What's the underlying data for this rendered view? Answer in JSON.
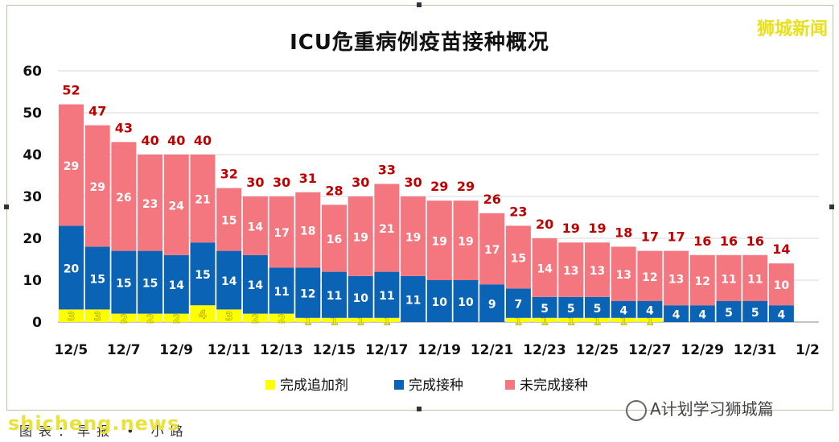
{
  "brand": "狮城新闻",
  "wechat_label": "A计划学习狮城篇",
  "watermark": "shicheng.news",
  "footer_text": "图表：早报 • 小路",
  "colors": {
    "booster": "#ffff00",
    "complete": "#0b63b5",
    "incomplete": "#f4777f",
    "total_label": "#c00000",
    "grid": "#d9d9d9"
  },
  "chart_data": {
    "type": "bar",
    "stacked": true,
    "title": "ICU危重病例疫苗接种概况",
    "categories": [
      "12/5",
      "12/6",
      "12/7",
      "12/8",
      "12/9",
      "12/10",
      "12/11",
      "12/12",
      "12/13",
      "12/14",
      "12/15",
      "12/16",
      "12/17",
      "12/18",
      "12/19",
      "12/20",
      "12/21",
      "12/22",
      "12/23",
      "12/24",
      "12/25",
      "12/26",
      "12/27",
      "12/28",
      "12/29",
      "12/30",
      "12/31",
      "1/1"
    ],
    "x_tick_labels": [
      "12/5",
      "12/7",
      "12/9",
      "12/11",
      "12/13",
      "12/15",
      "12/17",
      "12/19",
      "12/21",
      "12/23",
      "12/25",
      "12/27",
      "12/29",
      "12/31",
      "1/2"
    ],
    "ylim": [
      0,
      60
    ],
    "yticks": [
      0,
      10,
      20,
      30,
      40,
      50,
      60
    ],
    "grid": true,
    "legend_position": "bottom",
    "series": [
      {
        "name": "完成追加剂",
        "values": [
          3,
          3,
          2,
          2,
          2,
          4,
          3,
          2,
          2,
          1,
          1,
          1,
          1,
          0,
          0,
          0,
          0,
          1,
          1,
          1,
          1,
          1,
          1,
          0,
          0,
          0,
          0,
          0
        ]
      },
      {
        "name": "完成接种",
        "values": [
          20,
          15,
          15,
          15,
          14,
          15,
          14,
          14,
          11,
          12,
          11,
          10,
          11,
          11,
          10,
          10,
          9,
          7,
          5,
          5,
          5,
          4,
          4,
          4,
          4,
          5,
          5,
          4
        ]
      },
      {
        "name": "未完成接种",
        "values": [
          29,
          29,
          26,
          23,
          24,
          21,
          15,
          14,
          17,
          18,
          16,
          19,
          21,
          19,
          19,
          19,
          17,
          15,
          14,
          13,
          13,
          13,
          12,
          13,
          12,
          11,
          11,
          10
        ]
      }
    ],
    "totals": [
      52,
      47,
      43,
      40,
      40,
      40,
      32,
      30,
      30,
      31,
      28,
      30,
      33,
      30,
      29,
      29,
      26,
      23,
      20,
      19,
      19,
      18,
      17,
      17,
      16,
      16,
      16,
      14
    ]
  }
}
